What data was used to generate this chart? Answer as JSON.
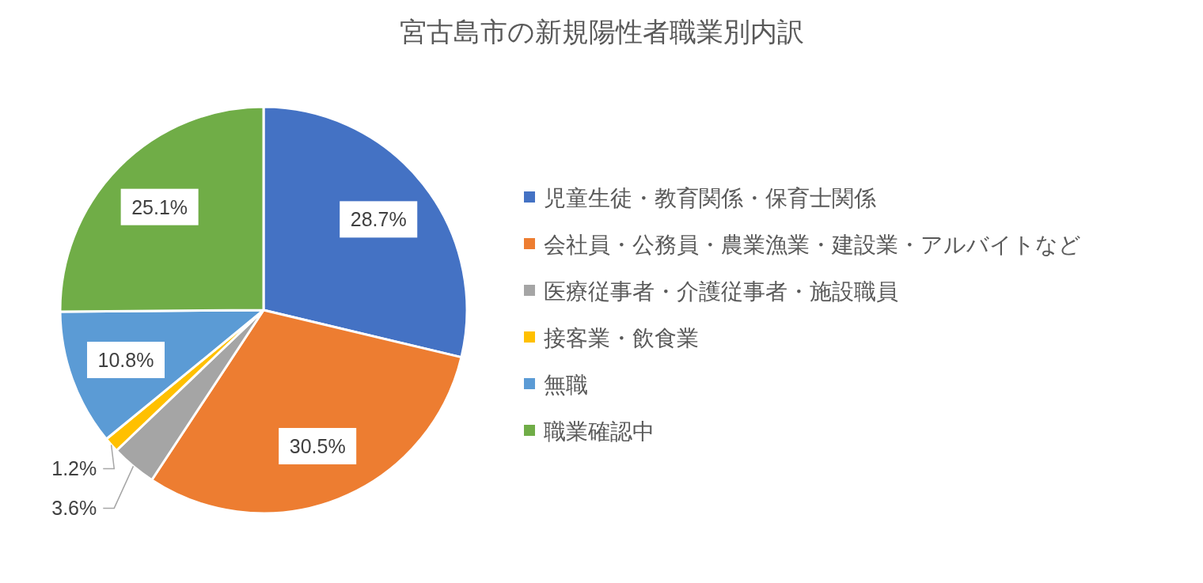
{
  "chart_data": {
    "type": "pie",
    "title": "宮古島市の新規陽性者職業別内訳",
    "categories": [
      "児童生徒・教育関係・保育士関係",
      "会社員・公務員・農業漁業・建設業・アルバイトなど",
      "医療従事者・介護従事者・施設職員",
      "接客業・飲食業",
      "無職",
      "職業確認中"
    ],
    "values": [
      28.7,
      30.5,
      3.6,
      1.2,
      10.8,
      25.1
    ],
    "colors": [
      "#4472c4",
      "#ed7d31",
      "#a5a5a5",
      "#ffc000",
      "#5b9bd5",
      "#70ad47"
    ],
    "value_labels": [
      "28.7%",
      "30.5%",
      "3.6%",
      "1.2%",
      "10.8%",
      "25.1%"
    ],
    "legend": "right"
  }
}
